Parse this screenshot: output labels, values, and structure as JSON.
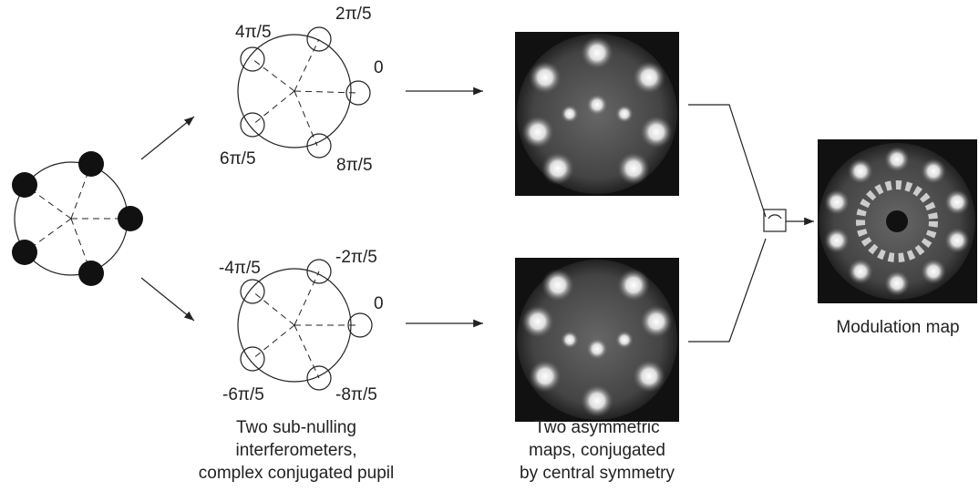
{
  "top_interferometer": {
    "labels": [
      "4π/5",
      "2π/5",
      "0",
      "6π/5",
      "8π/5"
    ]
  },
  "bottom_interferometer": {
    "labels": [
      "-4π/5",
      "-2π/5",
      "0",
      "-6π/5",
      "-8π/5"
    ]
  },
  "captions": {
    "interferometers": [
      "Two sub-nulling",
      "interferometers,",
      "complex conjugated pupil"
    ],
    "maps": [
      "Two asymmetric",
      "maps, conjugated",
      "by central symmetry"
    ],
    "modulation": "Modulation map"
  }
}
